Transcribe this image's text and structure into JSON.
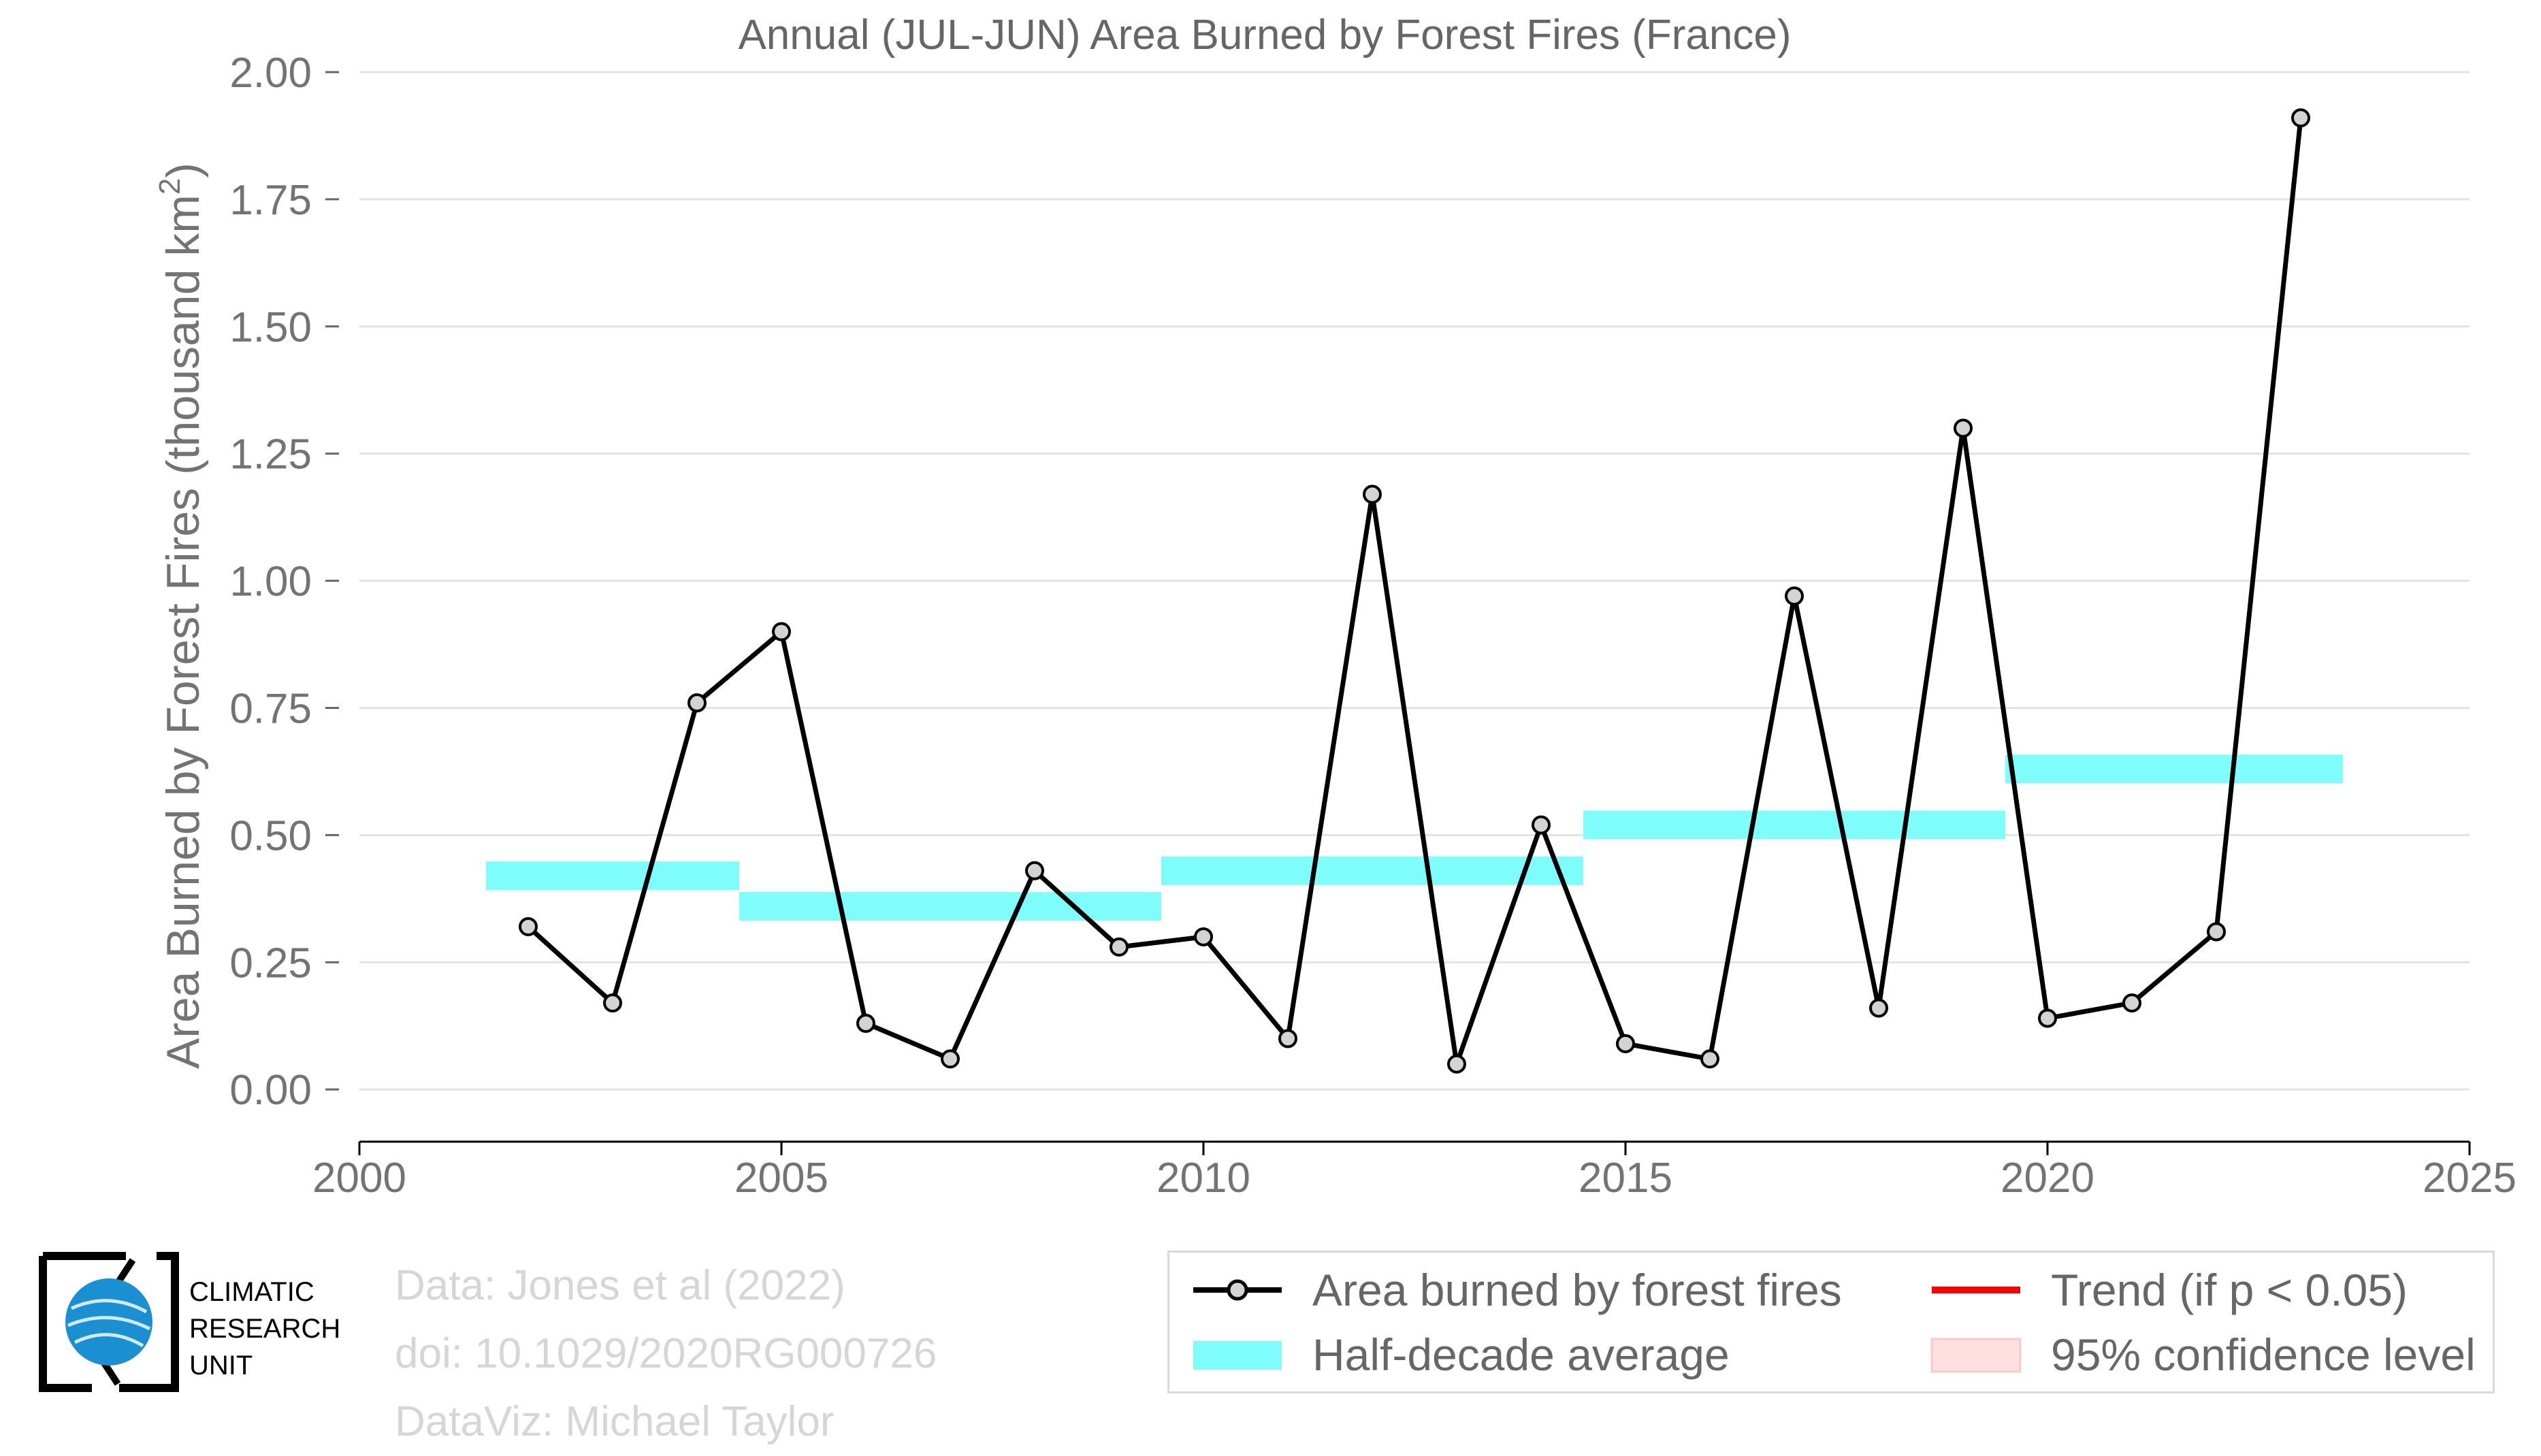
{
  "chart_data": {
    "type": "line",
    "title": "Annual (JUL-JUN) Area Burned by Forest Fires (France)",
    "ylabel_main": "Area Burned by Forest Fires (thousand km",
    "ylabel_sup": "2",
    "ylabel_close": ")",
    "xlabel": "",
    "xlim": [
      2000,
      2025
    ],
    "ylim": [
      -0.1,
      2.0
    ],
    "xticks": [
      "2000",
      "2005",
      "2010",
      "2015",
      "2020",
      "2025"
    ],
    "yticks": [
      "0.00",
      "0.25",
      "0.50",
      "0.75",
      "1.00",
      "1.25",
      "1.50",
      "1.75",
      "2.00"
    ],
    "series": [
      {
        "name": "Area burned by forest fires",
        "color": "#000000",
        "marker_fill": "#d3d3d3",
        "x": [
          2002,
          2003,
          2004,
          2005,
          2006,
          2007,
          2008,
          2009,
          2010,
          2011,
          2012,
          2013,
          2014,
          2015,
          2016,
          2017,
          2018,
          2019,
          2020,
          2021,
          2022,
          2023
        ],
        "y": [
          0.32,
          0.17,
          0.76,
          0.9,
          0.13,
          0.06,
          0.43,
          0.28,
          0.3,
          0.1,
          1.17,
          0.05,
          0.52,
          0.09,
          0.06,
          0.97,
          0.16,
          1.3,
          0.14,
          0.17,
          0.31,
          1.91
        ]
      }
    ],
    "half_decade_average": {
      "name": "Half-decade average",
      "color": "#7ffdfd",
      "segments": [
        {
          "x0": 2001.5,
          "x1": 2004.5,
          "y": 0.42
        },
        {
          "x0": 2004.5,
          "x1": 2009.5,
          "y": 0.36
        },
        {
          "x0": 2009.5,
          "x1": 2014.5,
          "y": 0.43
        },
        {
          "x0": 2014.5,
          "x1": 2019.5,
          "y": 0.52
        },
        {
          "x0": 2019.5,
          "x1": 2023.5,
          "y": 0.63
        }
      ]
    },
    "trend": {
      "name": "Trend (if p < 0.05)",
      "color": "#ff0000"
    },
    "confidence": {
      "name": "95% confidence level",
      "color": "#ffd6d6"
    },
    "grid": "horizontal",
    "legend_position": "bottom-right"
  },
  "legend": {
    "area_burned": "Area burned by forest fires",
    "half_decade": "Half-decade average",
    "trend": "Trend (if p < 0.05)",
    "confidence": "95% confidence level"
  },
  "credits": {
    "data": "Data: Jones et al (2022)",
    "doi": "doi: 10.1029/2020RG000726",
    "dataviz": "DataViz: Michael Taylor"
  },
  "logo": {
    "line1": "CLIMATIC",
    "line2": "RESEARCH",
    "line3": "UNIT"
  }
}
